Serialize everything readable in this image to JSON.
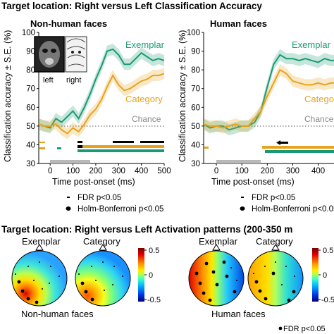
{
  "header": {
    "top_title": "Target location: Right versus Left Classification Accuracy",
    "bottom_title": "Target location: Right versus Left Activation patterns (200-350 m"
  },
  "panels": {
    "left": {
      "title": "Non-human faces",
      "inset_left": "left",
      "inset_right": "right"
    },
    "right": {
      "title": "Human faces"
    }
  },
  "axes": {
    "ylabel": "Classification accuracy ± S.E. (%)",
    "xlabel": "Time post-onset (ms)",
    "yticks": [
      "30",
      "40",
      "50",
      "60",
      "70",
      "80",
      "90",
      "100"
    ],
    "xticks": [
      "0",
      "100",
      "200",
      "300",
      "400",
      "500"
    ],
    "chance_label": "Chance",
    "exemplar_label": "Exemplar",
    "category_label": "Category",
    "category_label_right": "Categor"
  },
  "legend": {
    "fdr": "FDR p<0.05",
    "holm": "Holm-Bonferroni p<0.05",
    "fdr_bottom": "FDR p<0.05"
  },
  "topo": {
    "exemplar": "Exemplar",
    "category": "Category",
    "nonhuman": "Non-human faces",
    "human": "Human faces",
    "cbar_max": "0.5",
    "cbar_mid": "0",
    "cbar_min": "-0.5"
  },
  "colors": {
    "exemplar": "#1a9a74",
    "category": "#e8a21c",
    "chance": "#555555",
    "stim_bar": "#b8b8b8"
  },
  "chart_data": [
    {
      "type": "line",
      "title": "Non-human faces",
      "xlabel": "Time post-onset (ms)",
      "ylabel": "Classification accuracy ± S.E. (%)",
      "xlim": [
        -50,
        500
      ],
      "ylim": [
        30,
        100
      ],
      "chance": 50,
      "series": [
        {
          "name": "Exemplar",
          "x": [
            -50,
            -25,
            0,
            25,
            50,
            75,
            100,
            125,
            150,
            175,
            200,
            225,
            250,
            275,
            300,
            325,
            350,
            375,
            400,
            425,
            450,
            475,
            500
          ],
          "y": [
            51,
            50,
            49,
            54,
            52,
            55,
            58,
            54,
            60,
            67,
            75,
            82,
            90,
            91,
            88,
            83,
            83,
            86,
            89,
            87,
            85,
            86,
            85
          ]
        },
        {
          "name": "Category",
          "x": [
            -50,
            -25,
            0,
            25,
            50,
            75,
            100,
            125,
            150,
            175,
            200,
            225,
            250,
            275,
            300,
            325,
            350,
            375,
            400,
            425,
            450,
            475,
            500
          ],
          "y": [
            51,
            50,
            50,
            51,
            48,
            46,
            49,
            47,
            51,
            56,
            59,
            64,
            71,
            77,
            72,
            69,
            70,
            72,
            74,
            75,
            77,
            77,
            78
          ]
        }
      ]
    },
    {
      "type": "line",
      "title": "Human faces",
      "xlabel": "Time post-onset (ms)",
      "ylabel": "Classification accuracy ± S.E. (%)",
      "xlim": [
        -50,
        500
      ],
      "ylim": [
        30,
        100
      ],
      "chance": 50,
      "series": [
        {
          "name": "Exemplar",
          "x": [
            -50,
            -25,
            0,
            25,
            50,
            75,
            100,
            125,
            150,
            175,
            200,
            225,
            250,
            275,
            300,
            325,
            350,
            375,
            400,
            425,
            450,
            475,
            500
          ],
          "y": [
            51,
            49,
            50,
            50,
            48,
            49,
            50,
            50,
            52,
            58,
            71,
            83,
            88,
            86,
            86,
            85,
            86,
            85,
            84,
            86,
            85,
            85,
            86
          ]
        },
        {
          "name": "Category",
          "x": [
            -50,
            -25,
            0,
            25,
            50,
            75,
            100,
            125,
            150,
            175,
            200,
            225,
            250,
            275,
            300,
            325,
            350,
            375,
            400,
            425,
            450,
            475,
            500
          ],
          "y": [
            51,
            50,
            50,
            49,
            50,
            51,
            50,
            50,
            54,
            58,
            66,
            73,
            80,
            78,
            74,
            73,
            72,
            72,
            73,
            72,
            73,
            73,
            74
          ]
        }
      ]
    }
  ]
}
